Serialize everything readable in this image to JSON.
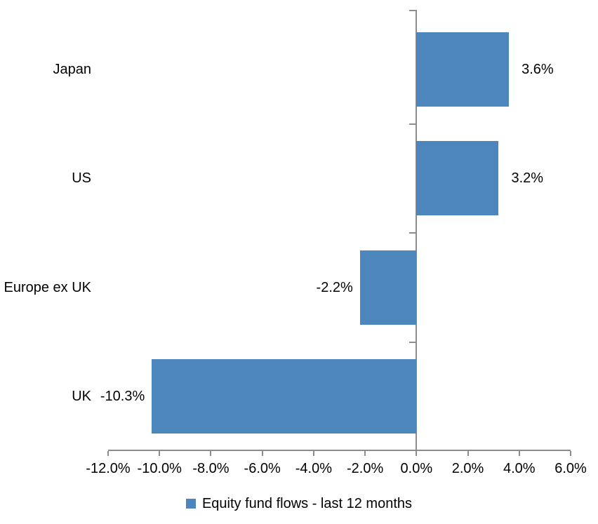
{
  "chart_data": {
    "type": "bar",
    "orientation": "horizontal",
    "title": "",
    "categories": [
      "Japan",
      "US",
      "Europe ex UK",
      "UK"
    ],
    "series": [
      {
        "name": "Equity fund flows - last 12 months",
        "values": [
          3.6,
          3.2,
          -2.2,
          -10.3
        ],
        "labels": [
          "3.6%",
          "3.2%",
          "-2.2%",
          "-10.3%"
        ]
      }
    ],
    "xlim": [
      -12,
      6
    ],
    "x_ticks": [
      -12,
      -10,
      -8,
      -6,
      -4,
      -2,
      0,
      2,
      4,
      6
    ],
    "x_tick_labels": [
      "-12.0%",
      "-10.0%",
      "-8.0%",
      "-6.0%",
      "-4.0%",
      "-2.0%",
      "0.0%",
      "2.0%",
      "4.0%",
      "6.0%"
    ],
    "grid": false,
    "legend_position": "bottom",
    "colors": {
      "bar": "#4D86BD",
      "axis": "#8C8C8C",
      "text": "#000000",
      "background": "#FFFFFF"
    }
  }
}
